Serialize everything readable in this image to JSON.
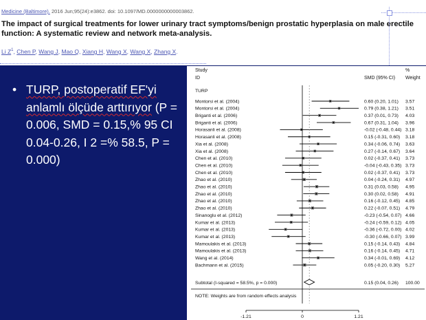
{
  "citation": {
    "journal": "Medicine (Baltimore).",
    "rest": " 2016 Jun;95(24):e3862. doi: 10.1097/MD.0000000000003862."
  },
  "paper_title": "The impact of surgical treatments for lower urinary tract symptoms/benign prostatic hyperplasia on male erectile function: A systematic review and network meta-analysis.",
  "authors": [
    "Li Z",
    "1",
    ", ",
    "Chen P",
    ", ",
    "Wang J",
    ", ",
    "Mao Q",
    ", ",
    "Xiang H",
    ", ",
    "Wang X",
    ", ",
    "Wang X",
    ", ",
    "Zhang X",
    "."
  ],
  "bullet": {
    "underlined": "TURP, postoperatif EF'yi anlamlı ölçüde arttırıyor",
    "rest": " (P = 0.006, SMD = 0.15,% 95 CI 0.04-0.26, I 2 =% 58.5, P = 0.000)"
  },
  "forest": {
    "header_study": "Study",
    "header_id": "ID",
    "header_smd": "SMD (95% CI)",
    "header_pct": "%",
    "header_weight": "Weight",
    "group_label": "TURP",
    "subtotal_label": "Subtotal  (I-squared = 58.5%, p = 0.000)",
    "subtotal_ci": "0.15 (0.04, 0.26)",
    "subtotal_weight": "100.00",
    "note": "NOTE: Weights are from random effects analysis",
    "axis_ticks": [
      "-1.21",
      "0",
      "1.21"
    ]
  },
  "chart_data": {
    "type": "forest",
    "x_range": [
      -1.21,
      1.21
    ],
    "studies": [
      {
        "id": "Montorsi et al. (2004)",
        "smd": 0.6,
        "lo": 0.2,
        "hi": 1.01,
        "ci": "0.60 (0.20, 1.01)",
        "weight": "3.57"
      },
      {
        "id": "Montorsi et al. (2004)",
        "smd": 0.79,
        "lo": 0.38,
        "hi": 1.21,
        "ci": "0.79 (0.38, 1.21)",
        "weight": "3.51"
      },
      {
        "id": "Briganti et al. (2006)",
        "smd": 0.37,
        "lo": 0.01,
        "hi": 0.73,
        "ci": "0.37 (0.01, 0.73)",
        "weight": "4.03"
      },
      {
        "id": "Briganti et al. (2006)",
        "smd": 0.67,
        "lo": 0.31,
        "hi": 1.04,
        "ci": "0.67 (0.31, 1.04)",
        "weight": "3.96"
      },
      {
        "id": "Horasanli et al. (2008)",
        "smd": -0.02,
        "lo": -0.48,
        "hi": 0.44,
        "ci": "-0.02 (-0.48, 0.44)",
        "weight": "3.18"
      },
      {
        "id": "Horasanli et al. (2008)",
        "smd": 0.15,
        "lo": -0.31,
        "hi": 0.6,
        "ci": "0.15 (-0.31, 0.60)",
        "weight": "3.18"
      },
      {
        "id": "Xia et al. (2008)",
        "smd": 0.34,
        "lo": -0.06,
        "hi": 0.74,
        "ci": "0.34 (-0.06, 0.74)",
        "weight": "3.63"
      },
      {
        "id": "Xia et al. (2008)",
        "smd": 0.27,
        "lo": -0.14,
        "hi": 0.67,
        "ci": "0.27 (-0.14, 0.67)",
        "weight": "3.64"
      },
      {
        "id": "Chen et al. (2010)",
        "smd": 0.02,
        "lo": -0.37,
        "hi": 0.41,
        "ci": "0.02 (-0.37, 0.41)",
        "weight": "3.73"
      },
      {
        "id": "Chen et al. (2010)",
        "smd": -0.04,
        "lo": -0.43,
        "hi": 0.35,
        "ci": "-0.04 (-0.43, 0.35)",
        "weight": "3.73"
      },
      {
        "id": "Chen et al. (2010)",
        "smd": 0.02,
        "lo": -0.37,
        "hi": 0.41,
        "ci": "0.02 (-0.37, 0.41)",
        "weight": "3.73"
      },
      {
        "id": "Zhao et al. (2010)",
        "smd": 0.04,
        "lo": -0.24,
        "hi": 0.31,
        "ci": "0.04 (-0.24, 0.31)",
        "weight": "4.97"
      },
      {
        "id": "Zhao et al. (2010)",
        "smd": 0.31,
        "lo": 0.03,
        "hi": 0.58,
        "ci": "0.31 (0.03, 0.58)",
        "weight": "4.95"
      },
      {
        "id": "Zhao et al. (2010)",
        "smd": 0.3,
        "lo": 0.02,
        "hi": 0.58,
        "ci": "0.30 (0.02, 0.58)",
        "weight": "4.91"
      },
      {
        "id": "Zhao et al. (2010)",
        "smd": 0.16,
        "lo": -0.12,
        "hi": 0.45,
        "ci": "0.16 (-0.12, 0.45)",
        "weight": "4.85"
      },
      {
        "id": "Zhao et al. (2010)",
        "smd": 0.22,
        "lo": -0.07,
        "hi": 0.51,
        "ci": "0.22 (-0.07, 0.51)",
        "weight": "4.79"
      },
      {
        "id": "Sinanoglu et al. (2012)",
        "smd": -0.23,
        "lo": -0.54,
        "hi": 0.07,
        "ci": "-0.23 (-0.54, 0.07)",
        "weight": "4.66"
      },
      {
        "id": "Kumar et al. (2013)",
        "smd": -0.24,
        "lo": -0.59,
        "hi": 0.12,
        "ci": "-0.24 (-0.59, 0.12)",
        "weight": "4.05"
      },
      {
        "id": "Kumar et al. (2013)",
        "smd": -0.36,
        "lo": -0.72,
        "hi": 0.0,
        "ci": "-0.36 (-0.72, 0.00)",
        "weight": "4.02"
      },
      {
        "id": "Kumar et al. (2013)",
        "smd": -0.3,
        "lo": -0.66,
        "hi": 0.07,
        "ci": "-0.30 (-0.66, 0.07)",
        "weight": "3.99"
      },
      {
        "id": "Mamoulakis et al. (2013)",
        "smd": 0.15,
        "lo": -0.14,
        "hi": 0.43,
        "ci": "0.15 (-0.14, 0.43)",
        "weight": "4.84"
      },
      {
        "id": "Mamoulakis et al. (2013)",
        "smd": 0.16,
        "lo": -0.14,
        "hi": 0.45,
        "ci": "0.16 (-0.14, 0.45)",
        "weight": "4.71"
      },
      {
        "id": "Wang et al. (2014)",
        "smd": 0.34,
        "lo": -0.01,
        "hi": 0.69,
        "ci": "0.34 (-0.01, 0.69)",
        "weight": "4.12"
      },
      {
        "id": "Bachmann et al. (2015)",
        "smd": 0.05,
        "lo": -0.2,
        "hi": 0.3,
        "ci": "0.05 (-0.20, 0.30)",
        "weight": "5.27"
      }
    ],
    "subtotal": {
      "smd": 0.15,
      "lo": 0.04,
      "hi": 0.26
    }
  },
  "colors": {
    "slide_background": "#0d1a6b",
    "link": "#4a55b3",
    "spellcheck_underline": "#d82a2a"
  }
}
